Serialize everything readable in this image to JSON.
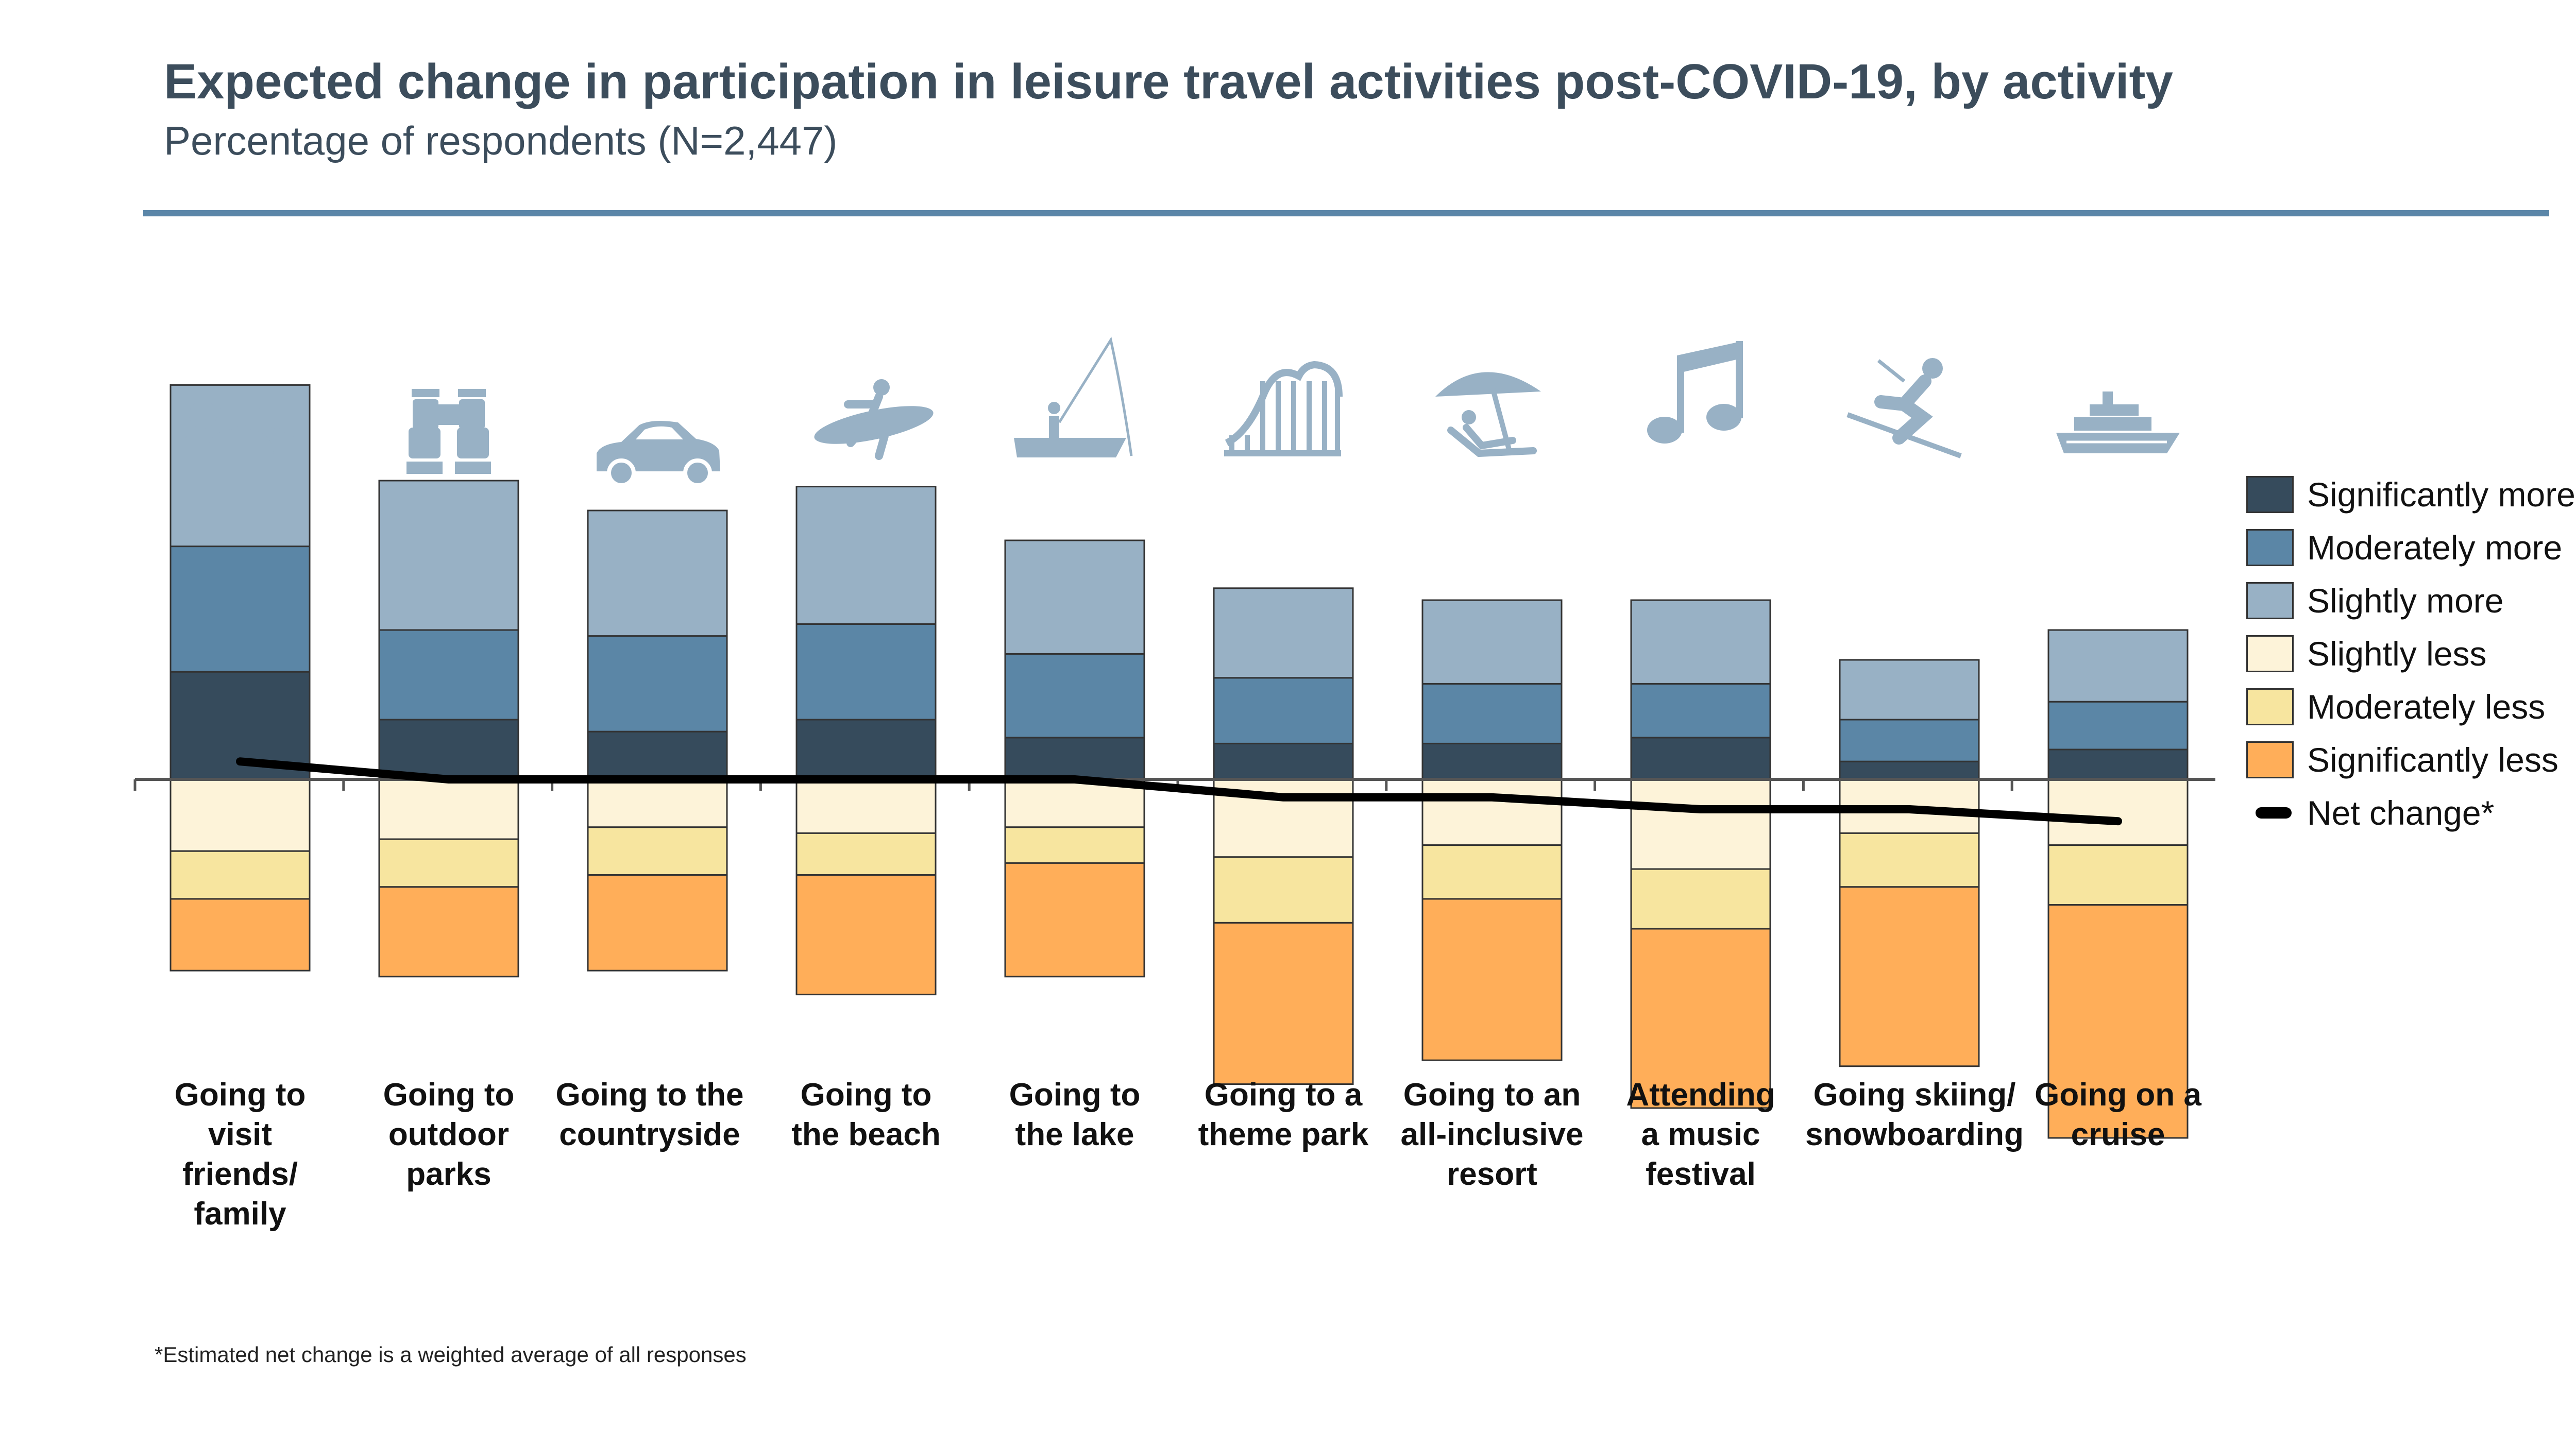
{
  "header": {
    "title": "Expected change in participation in leisure travel activities post-COVID-19, by activity",
    "subtitle": "Percentage of respondents (N=2,447)"
  },
  "footnote": "*Estimated net change is a weighted average of all responses",
  "icons": [
    "people-icon",
    "binoculars-icon",
    "car-icon",
    "surfer-icon",
    "fishing-boat-icon",
    "roller-coaster-icon",
    "beach-umbrella-icon",
    "music-note-icon",
    "skier-icon",
    "cruise-ship-icon"
  ],
  "colors": {
    "significantly_more": "#364b5c",
    "moderately_more": "#5b86a6",
    "slightly_more": "#98b1c5",
    "slightly_less": "#fdf3d9",
    "moderately_less": "#f7e59f",
    "significantly_less": "#ffae59",
    "net_change": "#000000",
    "icon": "#98b1c5"
  },
  "chart_data": {
    "type": "bar",
    "stacked": "diverging",
    "categories": [
      [
        "Going to",
        "visit",
        "friends/",
        "family"
      ],
      [
        "Going to",
        "outdoor",
        "parks"
      ],
      [
        "Going to the",
        "countryside"
      ],
      [
        "Going to",
        "the beach"
      ],
      [
        "Going to",
        "the lake"
      ],
      [
        "Going to a",
        "theme park"
      ],
      [
        "Going to an",
        "all-inclusive",
        "resort"
      ],
      [
        "Attending",
        "a music",
        "festival"
      ],
      [
        "Going skiing/",
        "snowboarding"
      ],
      [
        "Going on a",
        "cruise"
      ]
    ],
    "series": [
      {
        "name": "Significantly more",
        "values": [
          18,
          10,
          8,
          10,
          7,
          6,
          6,
          7,
          3,
          5
        ]
      },
      {
        "name": "Moderately more",
        "values": [
          21,
          15,
          16,
          16,
          14,
          11,
          10,
          9,
          7,
          8
        ]
      },
      {
        "name": "Slightly more",
        "values": [
          27,
          25,
          21,
          23,
          19,
          15,
          14,
          14,
          10,
          12
        ]
      },
      {
        "name": "Slightly less",
        "values": [
          -12,
          -10,
          -8,
          -9,
          -8,
          -13,
          -11,
          -15,
          -9,
          -11
        ]
      },
      {
        "name": "Moderately less",
        "values": [
          -8,
          -8,
          -8,
          -7,
          -6,
          -11,
          -9,
          -10,
          -9,
          -10
        ]
      },
      {
        "name": "Significantly less",
        "values": [
          -12,
          -15,
          -16,
          -20,
          -19,
          -27,
          -27,
          -30,
          -30,
          -39
        ]
      }
    ],
    "net_change": {
      "name": "Net change*",
      "values": [
        3,
        0,
        0,
        0,
        0,
        -3,
        -3,
        -5,
        -5,
        -7
      ]
    },
    "ylim": [
      -62,
      66
    ],
    "legend_position": "right",
    "grid": false
  }
}
